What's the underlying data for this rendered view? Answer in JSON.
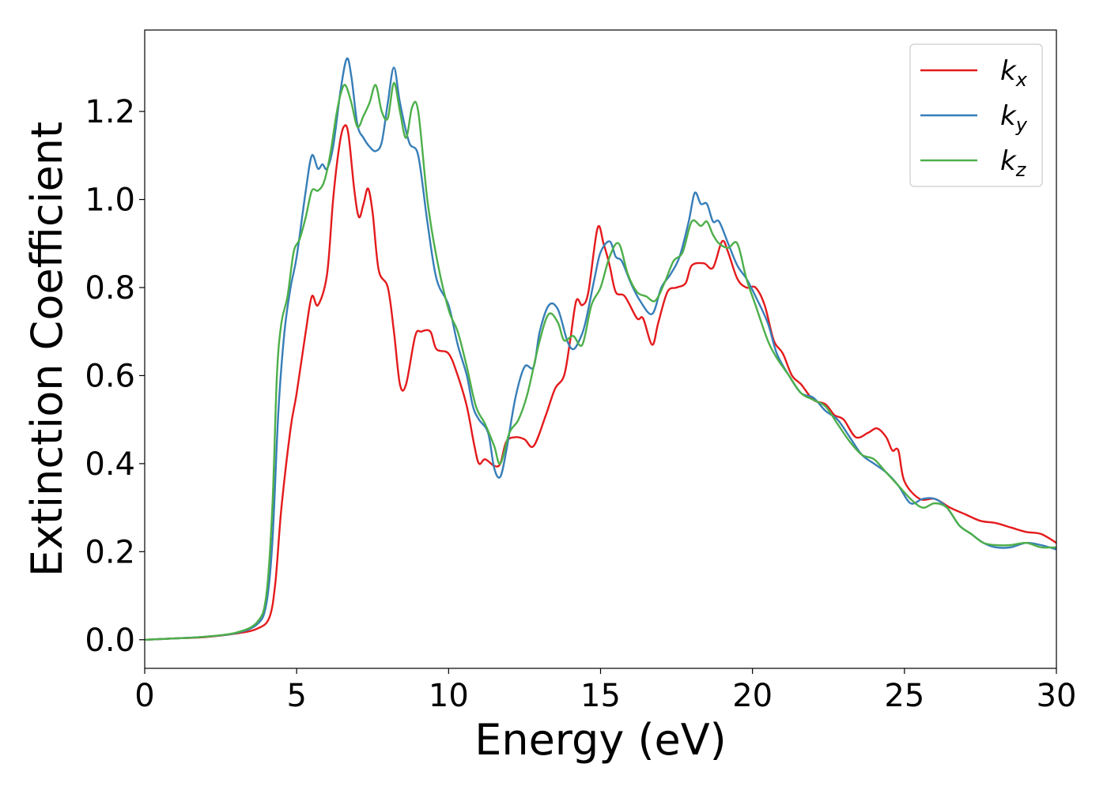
{
  "chart_data": {
    "type": "line",
    "title": "",
    "xlabel": "Energy (eV)",
    "ylabel": "Extinction Coefficient",
    "xlim": [
      0,
      30
    ],
    "ylim": [
      -0.065,
      1.385
    ],
    "xticks": [
      0,
      5,
      10,
      15,
      20,
      25,
      30
    ],
    "xtick_labels": [
      "0",
      "5",
      "10",
      "15",
      "20",
      "25",
      "30"
    ],
    "yticks": [
      0.0,
      0.2,
      0.4,
      0.6,
      0.8,
      1.0,
      1.2
    ],
    "ytick_labels": [
      "0.0",
      "0.2",
      "0.4",
      "0.6",
      "0.8",
      "1.0",
      "1.2"
    ],
    "grid": false,
    "legend_position": "top-right",
    "series": [
      {
        "name": "k",
        "subscript": "x",
        "color": "#e41a1c",
        "points": [
          [
            0,
            0
          ],
          [
            1,
            0.003
          ],
          [
            2,
            0.006
          ],
          [
            3,
            0.014
          ],
          [
            3.7,
            0.025
          ],
          [
            4.1,
            0.05
          ],
          [
            4.3,
            0.13
          ],
          [
            4.5,
            0.3
          ],
          [
            4.8,
            0.48
          ],
          [
            5.0,
            0.56
          ],
          [
            5.3,
            0.7
          ],
          [
            5.5,
            0.78
          ],
          [
            5.7,
            0.76
          ],
          [
            6.0,
            0.83
          ],
          [
            6.2,
            1.0
          ],
          [
            6.4,
            1.12
          ],
          [
            6.55,
            1.165
          ],
          [
            6.7,
            1.15
          ],
          [
            6.9,
            1.02
          ],
          [
            7.05,
            0.96
          ],
          [
            7.2,
            0.99
          ],
          [
            7.35,
            1.025
          ],
          [
            7.5,
            0.97
          ],
          [
            7.7,
            0.84
          ],
          [
            8.0,
            0.8
          ],
          [
            8.2,
            0.7
          ],
          [
            8.4,
            0.58
          ],
          [
            8.6,
            0.58
          ],
          [
            8.9,
            0.69
          ],
          [
            9.1,
            0.7
          ],
          [
            9.4,
            0.7
          ],
          [
            9.6,
            0.66
          ],
          [
            10.0,
            0.65
          ],
          [
            10.3,
            0.6
          ],
          [
            10.6,
            0.53
          ],
          [
            10.85,
            0.44
          ],
          [
            11.0,
            0.4
          ],
          [
            11.2,
            0.41
          ],
          [
            11.5,
            0.395
          ],
          [
            11.7,
            0.4
          ],
          [
            11.9,
            0.45
          ],
          [
            12.2,
            0.46
          ],
          [
            12.5,
            0.455
          ],
          [
            12.8,
            0.44
          ],
          [
            13.2,
            0.51
          ],
          [
            13.5,
            0.57
          ],
          [
            13.8,
            0.6
          ],
          [
            14.0,
            0.68
          ],
          [
            14.2,
            0.77
          ],
          [
            14.4,
            0.76
          ],
          [
            14.6,
            0.79
          ],
          [
            14.9,
            0.935
          ],
          [
            15.1,
            0.9
          ],
          [
            15.3,
            0.85
          ],
          [
            15.5,
            0.79
          ],
          [
            15.8,
            0.78
          ],
          [
            16.2,
            0.73
          ],
          [
            16.4,
            0.73
          ],
          [
            16.7,
            0.67
          ],
          [
            16.9,
            0.72
          ],
          [
            17.2,
            0.79
          ],
          [
            17.5,
            0.8
          ],
          [
            17.8,
            0.81
          ],
          [
            18.0,
            0.85
          ],
          [
            18.4,
            0.855
          ],
          [
            18.7,
            0.845
          ],
          [
            19.0,
            0.905
          ],
          [
            19.2,
            0.88
          ],
          [
            19.5,
            0.82
          ],
          [
            19.8,
            0.8
          ],
          [
            20.1,
            0.8
          ],
          [
            20.4,
            0.76
          ],
          [
            20.7,
            0.68
          ],
          [
            21.0,
            0.65
          ],
          [
            21.3,
            0.6
          ],
          [
            21.6,
            0.58
          ],
          [
            22.0,
            0.545
          ],
          [
            22.4,
            0.535
          ],
          [
            22.7,
            0.51
          ],
          [
            23.0,
            0.5
          ],
          [
            23.4,
            0.46
          ],
          [
            23.8,
            0.47
          ],
          [
            24.1,
            0.48
          ],
          [
            24.4,
            0.46
          ],
          [
            24.6,
            0.43
          ],
          [
            24.8,
            0.43
          ],
          [
            25.0,
            0.36
          ],
          [
            25.5,
            0.32
          ],
          [
            26.0,
            0.32
          ],
          [
            26.5,
            0.3
          ],
          [
            27.0,
            0.285
          ],
          [
            27.5,
            0.27
          ],
          [
            28.0,
            0.265
          ],
          [
            28.5,
            0.255
          ],
          [
            29.0,
            0.245
          ],
          [
            29.5,
            0.24
          ],
          [
            30.0,
            0.22
          ]
        ]
      },
      {
        "name": "k",
        "subscript": "y",
        "color": "#377eb8",
        "points": [
          [
            0,
            0
          ],
          [
            1,
            0.003
          ],
          [
            2,
            0.007
          ],
          [
            3,
            0.015
          ],
          [
            3.7,
            0.035
          ],
          [
            4.0,
            0.08
          ],
          [
            4.2,
            0.22
          ],
          [
            4.4,
            0.52
          ],
          [
            4.6,
            0.7
          ],
          [
            4.8,
            0.8
          ],
          [
            5.0,
            0.87
          ],
          [
            5.3,
            1.02
          ],
          [
            5.5,
            1.1
          ],
          [
            5.7,
            1.07
          ],
          [
            5.85,
            1.08
          ],
          [
            6.0,
            1.07
          ],
          [
            6.2,
            1.12
          ],
          [
            6.45,
            1.25
          ],
          [
            6.65,
            1.32
          ],
          [
            6.8,
            1.28
          ],
          [
            7.0,
            1.17
          ],
          [
            7.2,
            1.14
          ],
          [
            7.4,
            1.12
          ],
          [
            7.6,
            1.11
          ],
          [
            7.8,
            1.13
          ],
          [
            8.0,
            1.22
          ],
          [
            8.2,
            1.3
          ],
          [
            8.4,
            1.22
          ],
          [
            8.7,
            1.13
          ],
          [
            9.0,
            1.1
          ],
          [
            9.3,
            0.95
          ],
          [
            9.6,
            0.82
          ],
          [
            10.0,
            0.76
          ],
          [
            10.3,
            0.67
          ],
          [
            10.6,
            0.6
          ],
          [
            10.8,
            0.53
          ],
          [
            11.0,
            0.5
          ],
          [
            11.3,
            0.47
          ],
          [
            11.5,
            0.39
          ],
          [
            11.7,
            0.37
          ],
          [
            11.9,
            0.43
          ],
          [
            12.2,
            0.55
          ],
          [
            12.5,
            0.62
          ],
          [
            12.8,
            0.62
          ],
          [
            13.0,
            0.7
          ],
          [
            13.3,
            0.76
          ],
          [
            13.6,
            0.75
          ],
          [
            13.9,
            0.68
          ],
          [
            14.1,
            0.66
          ],
          [
            14.3,
            0.68
          ],
          [
            14.5,
            0.72
          ],
          [
            14.8,
            0.82
          ],
          [
            15.0,
            0.88
          ],
          [
            15.3,
            0.905
          ],
          [
            15.5,
            0.87
          ],
          [
            15.7,
            0.86
          ],
          [
            16.0,
            0.81
          ],
          [
            16.3,
            0.77
          ],
          [
            16.7,
            0.74
          ],
          [
            17.0,
            0.8
          ],
          [
            17.3,
            0.83
          ],
          [
            17.6,
            0.87
          ],
          [
            17.9,
            0.95
          ],
          [
            18.1,
            1.015
          ],
          [
            18.3,
            0.99
          ],
          [
            18.5,
            0.99
          ],
          [
            18.7,
            0.95
          ],
          [
            18.9,
            0.95
          ],
          [
            19.2,
            0.9
          ],
          [
            19.5,
            0.85
          ],
          [
            19.8,
            0.82
          ],
          [
            20.1,
            0.78
          ],
          [
            20.5,
            0.72
          ],
          [
            20.8,
            0.65
          ],
          [
            21.2,
            0.6
          ],
          [
            21.6,
            0.56
          ],
          [
            22.0,
            0.55
          ],
          [
            22.4,
            0.52
          ],
          [
            22.8,
            0.5
          ],
          [
            23.2,
            0.46
          ],
          [
            23.6,
            0.42
          ],
          [
            24.0,
            0.4
          ],
          [
            24.4,
            0.38
          ],
          [
            24.8,
            0.35
          ],
          [
            25.2,
            0.31
          ],
          [
            25.6,
            0.32
          ],
          [
            26.0,
            0.32
          ],
          [
            26.4,
            0.3
          ],
          [
            26.8,
            0.26
          ],
          [
            27.2,
            0.24
          ],
          [
            27.6,
            0.22
          ],
          [
            28.0,
            0.21
          ],
          [
            28.5,
            0.21
          ],
          [
            29.0,
            0.22
          ],
          [
            29.5,
            0.215
          ],
          [
            30.0,
            0.205
          ]
        ]
      },
      {
        "name": "k",
        "subscript": "z",
        "color": "#4daf4a",
        "points": [
          [
            0,
            0
          ],
          [
            1,
            0.003
          ],
          [
            2,
            0.007
          ],
          [
            3,
            0.016
          ],
          [
            3.7,
            0.04
          ],
          [
            4.0,
            0.1
          ],
          [
            4.2,
            0.3
          ],
          [
            4.35,
            0.6
          ],
          [
            4.5,
            0.72
          ],
          [
            4.7,
            0.78
          ],
          [
            4.9,
            0.88
          ],
          [
            5.1,
            0.91
          ],
          [
            5.3,
            0.96
          ],
          [
            5.5,
            1.02
          ],
          [
            5.7,
            1.02
          ],
          [
            5.9,
            1.04
          ],
          [
            6.1,
            1.1
          ],
          [
            6.3,
            1.19
          ],
          [
            6.45,
            1.24
          ],
          [
            6.6,
            1.26
          ],
          [
            6.8,
            1.22
          ],
          [
            7.0,
            1.165
          ],
          [
            7.2,
            1.19
          ],
          [
            7.4,
            1.22
          ],
          [
            7.6,
            1.26
          ],
          [
            7.8,
            1.2
          ],
          [
            8.0,
            1.185
          ],
          [
            8.2,
            1.265
          ],
          [
            8.4,
            1.2
          ],
          [
            8.6,
            1.14
          ],
          [
            8.8,
            1.21
          ],
          [
            9.0,
            1.2
          ],
          [
            9.3,
            1.0
          ],
          [
            9.6,
            0.87
          ],
          [
            10.0,
            0.75
          ],
          [
            10.3,
            0.7
          ],
          [
            10.6,
            0.62
          ],
          [
            10.9,
            0.53
          ],
          [
            11.2,
            0.49
          ],
          [
            11.5,
            0.44
          ],
          [
            11.7,
            0.4
          ],
          [
            12.0,
            0.47
          ],
          [
            12.3,
            0.5
          ],
          [
            12.6,
            0.56
          ],
          [
            13.0,
            0.68
          ],
          [
            13.3,
            0.74
          ],
          [
            13.6,
            0.72
          ],
          [
            13.8,
            0.68
          ],
          [
            14.1,
            0.69
          ],
          [
            14.4,
            0.67
          ],
          [
            14.7,
            0.76
          ],
          [
            15.0,
            0.8
          ],
          [
            15.3,
            0.87
          ],
          [
            15.6,
            0.9
          ],
          [
            15.9,
            0.83
          ],
          [
            16.2,
            0.79
          ],
          [
            16.5,
            0.78
          ],
          [
            16.8,
            0.77
          ],
          [
            17.1,
            0.81
          ],
          [
            17.4,
            0.86
          ],
          [
            17.7,
            0.88
          ],
          [
            18.0,
            0.95
          ],
          [
            18.3,
            0.94
          ],
          [
            18.5,
            0.95
          ],
          [
            18.7,
            0.92
          ],
          [
            18.9,
            0.9
          ],
          [
            19.2,
            0.89
          ],
          [
            19.5,
            0.9
          ],
          [
            19.8,
            0.82
          ],
          [
            20.1,
            0.76
          ],
          [
            20.5,
            0.68
          ],
          [
            20.8,
            0.64
          ],
          [
            21.2,
            0.6
          ],
          [
            21.6,
            0.56
          ],
          [
            22.0,
            0.545
          ],
          [
            22.4,
            0.53
          ],
          [
            22.8,
            0.49
          ],
          [
            23.2,
            0.45
          ],
          [
            23.6,
            0.42
          ],
          [
            24.0,
            0.41
          ],
          [
            24.4,
            0.38
          ],
          [
            24.8,
            0.35
          ],
          [
            25.2,
            0.32
          ],
          [
            25.6,
            0.3
          ],
          [
            26.0,
            0.31
          ],
          [
            26.4,
            0.3
          ],
          [
            26.8,
            0.26
          ],
          [
            27.2,
            0.24
          ],
          [
            27.6,
            0.22
          ],
          [
            28.0,
            0.215
          ],
          [
            28.5,
            0.215
          ],
          [
            29.0,
            0.22
          ],
          [
            29.5,
            0.21
          ],
          [
            30.0,
            0.21
          ]
        ]
      }
    ]
  }
}
